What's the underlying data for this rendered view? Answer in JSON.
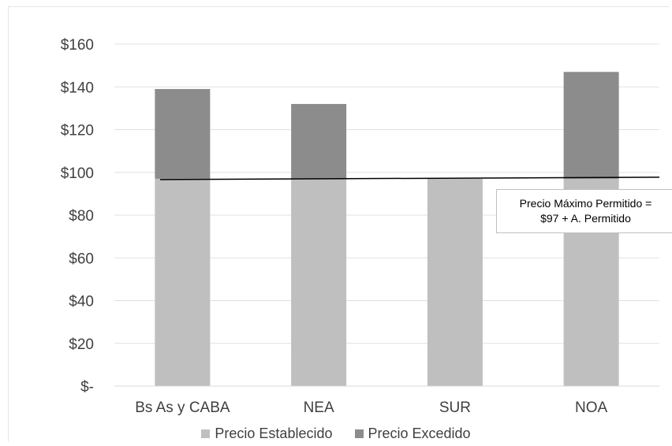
{
  "chart_data": {
    "type": "bar",
    "stacked": true,
    "categories": [
      "Bs As y CABA",
      "NEA",
      "SUR",
      "NOA"
    ],
    "series": [
      {
        "name": "Precio Establecido",
        "color": "#bfbfbf",
        "values": [
          97,
          97,
          97,
          97
        ]
      },
      {
        "name": "Precio Excedido",
        "color": "#8c8c8c",
        "values": [
          42,
          35,
          0,
          50
        ]
      }
    ],
    "ylim": [
      0,
      160
    ],
    "yticks": [
      0,
      20,
      40,
      60,
      80,
      100,
      120,
      140,
      160
    ],
    "ytick_labels": [
      "$-",
      "$20",
      "$40",
      "$60",
      "$80",
      "$100",
      "$120",
      "$140",
      "$160"
    ],
    "grid": true,
    "legend_position": "bottom",
    "reference_line": {
      "value": 97,
      "color": "#000000"
    },
    "annotation": {
      "line1": "Precio Máximo Permitido =",
      "line2": "$97 + A. Permitido"
    }
  }
}
